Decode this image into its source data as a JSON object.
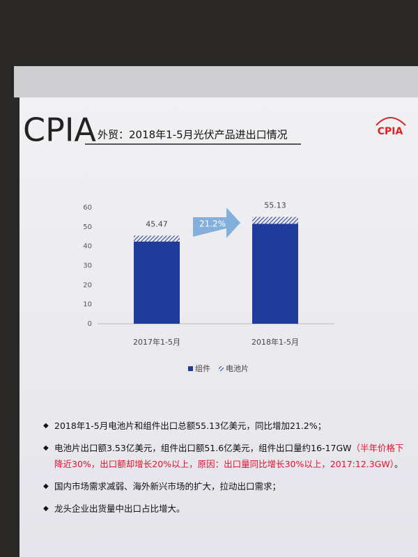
{
  "header": {
    "logo": "CPIA",
    "title": "外贸：2018年1-5月光伏产品进出口情况",
    "badge": "CPIA"
  },
  "chart_data": {
    "type": "stacked-bar",
    "categories": [
      "2017年1-5月",
      "2018年1-5月"
    ],
    "series": [
      {
        "name": "组件",
        "color": "#1f3c9c",
        "values": [
          42.4,
          51.6
        ]
      },
      {
        "name": "电池片",
        "color": "#1f3c9c",
        "pattern": "hatch",
        "values": [
          3.07,
          3.53
        ]
      }
    ],
    "totals": [
      45.47,
      55.13
    ],
    "annotation": "21.2%",
    "ylim": [
      0,
      60
    ],
    "yticks": [
      0,
      10,
      20,
      30,
      40,
      50,
      60
    ],
    "grid": false,
    "legend": "bottom"
  },
  "bullets": [
    [
      {
        "text": "2018年1-5月电池片和组件出口总额55.13亿美元，同比增加21.2%；"
      }
    ],
    [
      {
        "text": "电池片出口额3.53亿美元，组件出口额51.6亿美元，组件出口量约16-17GW"
      },
      {
        "text": "（半年价格下降近30%，出口额却增长20%以上，原因：出口量同比增长30%以上，2017:12.3GW）",
        "color": "#e8102a"
      },
      {
        "text": "。"
      }
    ],
    [
      {
        "text": "国内市场需求减弱、海外新兴市场的扩大，拉动出口需求；"
      }
    ],
    [
      {
        "text": "龙头企业出货量中出口占比增大。"
      }
    ]
  ]
}
